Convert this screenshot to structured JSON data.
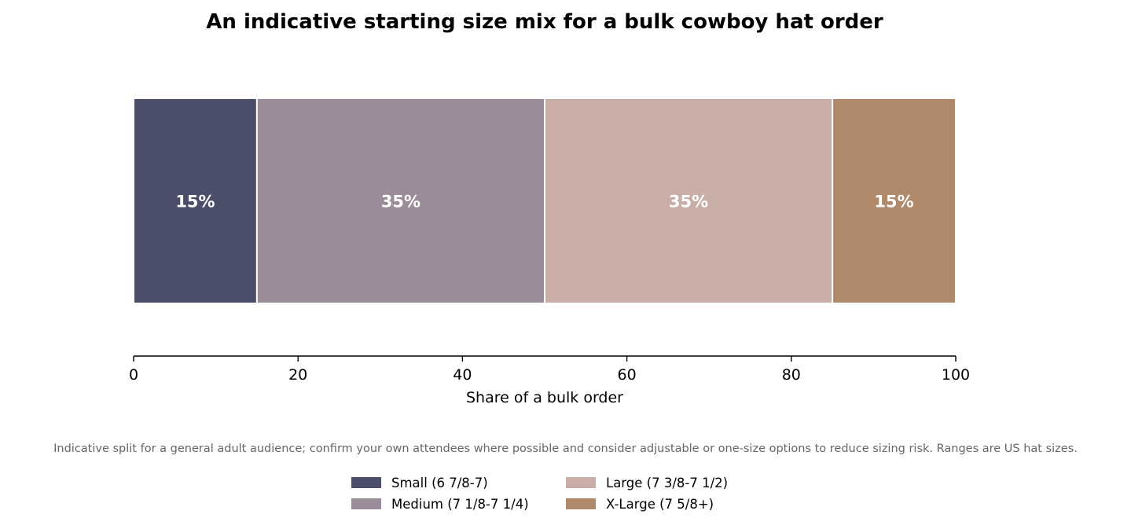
{
  "chart_data": {
    "type": "bar",
    "orientation": "horizontal",
    "stacked": true,
    "title": "An indicative starting size mix for a bulk cowboy hat order",
    "xlabel": "Share of a bulk order",
    "ylabel": "",
    "xlim": [
      0,
      100
    ],
    "xticks": [
      "0",
      "20",
      "40",
      "60",
      "80",
      "100"
    ],
    "grid": false,
    "legend_placement": "bottom-center",
    "footnote": "Indicative split for a general adult audience; confirm your own attendees where possible and consider adjustable or one-size options to reduce sizing risk. Ranges are US hat sizes.",
    "series": [
      {
        "name": "Small (6 7/8-7)",
        "value": 15,
        "label": "15%",
        "color": "#4a4e69"
      },
      {
        "name": "Medium (7 1/8-7 1/4)",
        "value": 35,
        "label": "35%",
        "color": "#9a8c98"
      },
      {
        "name": "Large (7 3/8-7 1/2)",
        "value": 35,
        "label": "35%",
        "color": "#c9ada7"
      },
      {
        "name": "X-Large (7 5/8+)",
        "value": 15,
        "label": "15%",
        "color": "#b0896a"
      }
    ]
  }
}
